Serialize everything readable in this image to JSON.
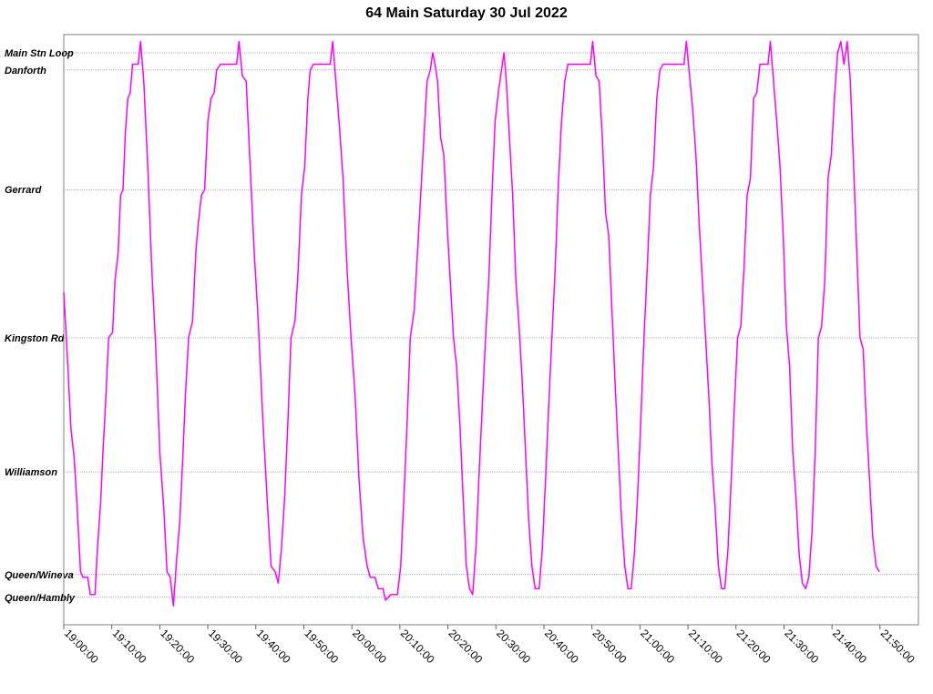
{
  "chart_data": {
    "type": "line",
    "title": "64 Main Saturday 30 Jul 2022",
    "xlabel": "",
    "ylabel": "",
    "x_range": [
      "19:00:00",
      "21:58:00"
    ],
    "x_ticks": [
      "19:00:00",
      "19:10:00",
      "19:20:00",
      "19:30:00",
      "19:40:00",
      "19:50:00",
      "20:00:00",
      "20:10:00",
      "20:20:00",
      "20:30:00",
      "20:40:00",
      "20:50:00",
      "21:00:00",
      "21:10:00",
      "21:20:00",
      "21:30:00",
      "21:40:00",
      "21:50:00"
    ],
    "y_stops": [
      {
        "name": "Main Stn Loop",
        "position": 1.0
      },
      {
        "name": "Danforth",
        "position": 0.97
      },
      {
        "name": "Gerrard",
        "position": 0.76
      },
      {
        "name": "Kingston Rd",
        "position": 0.5
      },
      {
        "name": "Williamson",
        "position": 0.265
      },
      {
        "name": "Queen/Wineva",
        "position": 0.085
      },
      {
        "name": "Queen/Hambly",
        "position": 0.045
      }
    ],
    "grid": true,
    "series_color": "#ff00ff",
    "series": [
      {
        "points": [
          [
            "19:00:00",
            0.58
          ],
          [
            "19:00:40",
            0.48
          ],
          [
            "19:01:30",
            0.34
          ],
          [
            "19:02:10",
            0.29
          ],
          [
            "19:02:40",
            0.22
          ],
          [
            "19:03:30",
            0.09
          ],
          [
            "19:04:00",
            0.08
          ],
          [
            "19:05:00",
            0.08
          ],
          [
            "19:05:30",
            0.05
          ],
          [
            "19:06:30",
            0.05
          ],
          [
            "19:07:00",
            0.13
          ],
          [
            "19:07:40",
            0.21
          ],
          [
            "19:08:10",
            0.3
          ],
          [
            "19:08:40",
            0.38
          ],
          [
            "19:09:20",
            0.5
          ],
          [
            "19:10:10",
            0.51
          ],
          [
            "19:10:40",
            0.6
          ],
          [
            "19:11:20",
            0.65
          ],
          [
            "19:11:50",
            0.75
          ],
          [
            "19:12:20",
            0.76
          ],
          [
            "19:12:50",
            0.86
          ],
          [
            "19:13:20",
            0.92
          ],
          [
            "19:13:50",
            0.93
          ],
          [
            "19:14:20",
            0.98
          ],
          [
            "19:15:30",
            0.98
          ],
          [
            "19:16:00",
            1.02
          ],
          [
            "19:16:40",
            0.95
          ],
          [
            "19:17:30",
            0.8
          ],
          [
            "19:18:20",
            0.62
          ],
          [
            "19:19:10",
            0.48
          ],
          [
            "19:20:00",
            0.3
          ],
          [
            "19:20:50",
            0.2
          ],
          [
            "19:21:30",
            0.09
          ],
          [
            "19:22:10",
            0.08
          ],
          [
            "19:22:50",
            0.03
          ],
          [
            "19:23:30",
            0.11
          ],
          [
            "19:24:10",
            0.18
          ],
          [
            "19:24:50",
            0.3
          ],
          [
            "19:25:20",
            0.4
          ],
          [
            "19:26:00",
            0.5
          ],
          [
            "19:26:50",
            0.53
          ],
          [
            "19:27:30",
            0.65
          ],
          [
            "19:28:00",
            0.7
          ],
          [
            "19:28:40",
            0.75
          ],
          [
            "19:29:20",
            0.76
          ],
          [
            "19:30:00",
            0.88
          ],
          [
            "19:30:40",
            0.92
          ],
          [
            "19:31:20",
            0.93
          ],
          [
            "19:31:50",
            0.97
          ],
          [
            "19:32:40",
            0.98
          ],
          [
            "19:36:00",
            0.98
          ],
          [
            "19:36:30",
            1.02
          ],
          [
            "19:37:10",
            0.96
          ],
          [
            "19:38:00",
            0.95
          ],
          [
            "19:38:50",
            0.8
          ],
          [
            "19:39:40",
            0.65
          ],
          [
            "19:40:30",
            0.53
          ],
          [
            "19:41:30",
            0.35
          ],
          [
            "19:42:20",
            0.22
          ],
          [
            "19:43:10",
            0.1
          ],
          [
            "19:44:00",
            0.09
          ],
          [
            "19:44:40",
            0.07
          ],
          [
            "19:45:20",
            0.13
          ],
          [
            "19:46:00",
            0.22
          ],
          [
            "19:46:40",
            0.35
          ],
          [
            "19:47:20",
            0.5
          ],
          [
            "19:48:10",
            0.53
          ],
          [
            "19:48:50",
            0.62
          ],
          [
            "19:49:30",
            0.75
          ],
          [
            "19:50:10",
            0.8
          ],
          [
            "19:50:50",
            0.92
          ],
          [
            "19:51:20",
            0.97
          ],
          [
            "19:52:00",
            0.98
          ],
          [
            "19:55:30",
            0.98
          ],
          [
            "19:56:00",
            1.02
          ],
          [
            "19:56:40",
            0.95
          ],
          [
            "19:57:20",
            0.88
          ],
          [
            "19:58:10",
            0.78
          ],
          [
            "19:59:00",
            0.62
          ],
          [
            "19:59:50",
            0.5
          ],
          [
            "20:00:40",
            0.4
          ],
          [
            "20:01:30",
            0.25
          ],
          [
            "20:02:20",
            0.15
          ],
          [
            "20:03:10",
            0.1
          ],
          [
            "20:03:50",
            0.08
          ],
          [
            "20:04:50",
            0.08
          ],
          [
            "20:05:30",
            0.06
          ],
          [
            "20:06:30",
            0.06
          ],
          [
            "20:07:00",
            0.04
          ],
          [
            "20:08:10",
            0.05
          ],
          [
            "20:09:30",
            0.05
          ],
          [
            "20:10:10",
            0.1
          ],
          [
            "20:10:50",
            0.22
          ],
          [
            "20:11:30",
            0.35
          ],
          [
            "20:12:10",
            0.5
          ],
          [
            "20:13:00",
            0.55
          ],
          [
            "20:13:40",
            0.65
          ],
          [
            "20:14:20",
            0.75
          ],
          [
            "20:15:00",
            0.85
          ],
          [
            "20:15:40",
            0.95
          ],
          [
            "20:16:20",
            0.97
          ],
          [
            "20:16:50",
            1.0
          ],
          [
            "20:17:20",
            0.98
          ],
          [
            "20:17:50",
            0.95
          ],
          [
            "20:18:30",
            0.85
          ],
          [
            "20:19:10",
            0.82
          ],
          [
            "20:19:50",
            0.7
          ],
          [
            "20:20:30",
            0.6
          ],
          [
            "20:21:10",
            0.5
          ],
          [
            "20:21:50",
            0.45
          ],
          [
            "20:22:30",
            0.35
          ],
          [
            "20:23:10",
            0.22
          ],
          [
            "20:23:50",
            0.1
          ],
          [
            "20:24:30",
            0.06
          ],
          [
            "20:25:10",
            0.05
          ],
          [
            "20:25:50",
            0.13
          ],
          [
            "20:26:30",
            0.26
          ],
          [
            "20:27:10",
            0.38
          ],
          [
            "20:27:50",
            0.5
          ],
          [
            "20:28:30",
            0.6
          ],
          [
            "20:29:10",
            0.75
          ],
          [
            "20:29:50",
            0.88
          ],
          [
            "20:30:30",
            0.93
          ],
          [
            "20:31:10",
            0.97
          ],
          [
            "20:31:40",
            1.0
          ],
          [
            "20:32:10",
            0.95
          ],
          [
            "20:32:50",
            0.85
          ],
          [
            "20:33:30",
            0.75
          ],
          [
            "20:34:10",
            0.6
          ],
          [
            "20:34:50",
            0.52
          ],
          [
            "20:35:30",
            0.42
          ],
          [
            "20:36:10",
            0.3
          ],
          [
            "20:36:50",
            0.18
          ],
          [
            "20:37:30",
            0.1
          ],
          [
            "20:38:10",
            0.06
          ],
          [
            "20:39:00",
            0.06
          ],
          [
            "20:39:40",
            0.13
          ],
          [
            "20:40:20",
            0.25
          ],
          [
            "20:41:00",
            0.38
          ],
          [
            "20:41:40",
            0.5
          ],
          [
            "20:42:20",
            0.62
          ],
          [
            "20:43:00",
            0.77
          ],
          [
            "20:43:40",
            0.88
          ],
          [
            "20:44:20",
            0.95
          ],
          [
            "20:45:00",
            0.98
          ],
          [
            "20:49:40",
            0.98
          ],
          [
            "20:50:10",
            1.02
          ],
          [
            "20:50:50",
            0.96
          ],
          [
            "20:51:30",
            0.95
          ],
          [
            "20:52:10",
            0.85
          ],
          [
            "20:52:50",
            0.72
          ],
          [
            "20:53:30",
            0.68
          ],
          [
            "20:54:10",
            0.55
          ],
          [
            "20:54:50",
            0.42
          ],
          [
            "20:55:30",
            0.3
          ],
          [
            "20:56:10",
            0.18
          ],
          [
            "20:56:50",
            0.1
          ],
          [
            "20:57:30",
            0.06
          ],
          [
            "20:58:10",
            0.06
          ],
          [
            "20:58:50",
            0.12
          ],
          [
            "20:59:30",
            0.22
          ],
          [
            "21:00:10",
            0.35
          ],
          [
            "21:00:50",
            0.5
          ],
          [
            "21:01:30",
            0.62
          ],
          [
            "21:02:10",
            0.75
          ],
          [
            "21:02:50",
            0.8
          ],
          [
            "21:03:30",
            0.92
          ],
          [
            "21:04:10",
            0.97
          ],
          [
            "21:04:50",
            0.98
          ],
          [
            "21:09:10",
            0.98
          ],
          [
            "21:09:40",
            1.02
          ],
          [
            "21:10:20",
            0.96
          ],
          [
            "21:11:00",
            0.9
          ],
          [
            "21:11:40",
            0.82
          ],
          [
            "21:12:20",
            0.7
          ],
          [
            "21:13:00",
            0.6
          ],
          [
            "21:13:40",
            0.5
          ],
          [
            "21:14:20",
            0.4
          ],
          [
            "21:15:00",
            0.28
          ],
          [
            "21:15:40",
            0.2
          ],
          [
            "21:16:20",
            0.1
          ],
          [
            "21:17:00",
            0.06
          ],
          [
            "21:17:40",
            0.06
          ],
          [
            "21:18:20",
            0.13
          ],
          [
            "21:19:00",
            0.25
          ],
          [
            "21:19:40",
            0.38
          ],
          [
            "21:20:20",
            0.5
          ],
          [
            "21:21:00",
            0.52
          ],
          [
            "21:21:40",
            0.62
          ],
          [
            "21:22:20",
            0.75
          ],
          [
            "21:23:00",
            0.78
          ],
          [
            "21:23:40",
            0.92
          ],
          [
            "21:24:20",
            0.93
          ],
          [
            "21:25:00",
            0.98
          ],
          [
            "21:26:40",
            0.98
          ],
          [
            "21:27:10",
            1.02
          ],
          [
            "21:27:50",
            0.95
          ],
          [
            "21:28:30",
            0.88
          ],
          [
            "21:29:10",
            0.8
          ],
          [
            "21:29:50",
            0.68
          ],
          [
            "21:30:30",
            0.52
          ],
          [
            "21:31:10",
            0.45
          ],
          [
            "21:31:50",
            0.3
          ],
          [
            "21:32:30",
            0.22
          ],
          [
            "21:33:10",
            0.12
          ],
          [
            "21:33:50",
            0.07
          ],
          [
            "21:34:30",
            0.06
          ],
          [
            "21:35:10",
            0.08
          ],
          [
            "21:35:50",
            0.16
          ],
          [
            "21:36:30",
            0.3
          ],
          [
            "21:37:10",
            0.5
          ],
          [
            "21:37:50",
            0.52
          ],
          [
            "21:38:30",
            0.6
          ],
          [
            "21:39:10",
            0.78
          ],
          [
            "21:39:50",
            0.82
          ],
          [
            "21:40:30",
            0.92
          ],
          [
            "21:41:10",
            1.0
          ],
          [
            "21:41:50",
            1.02
          ],
          [
            "21:42:30",
            0.98
          ],
          [
            "21:43:10",
            1.02
          ],
          [
            "21:43:50",
            0.95
          ],
          [
            "21:44:30",
            0.8
          ],
          [
            "21:45:10",
            0.65
          ],
          [
            "21:45:50",
            0.5
          ],
          [
            "21:46:30",
            0.48
          ],
          [
            "21:47:10",
            0.35
          ],
          [
            "21:47:50",
            0.25
          ],
          [
            "21:48:30",
            0.15
          ],
          [
            "21:49:10",
            0.1
          ],
          [
            "21:49:50",
            0.09
          ]
        ]
      }
    ]
  }
}
